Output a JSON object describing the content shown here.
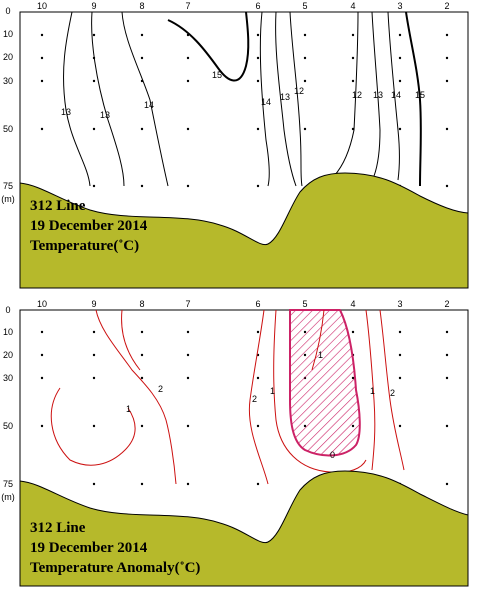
{
  "top": {
    "stations": [
      "10",
      "9",
      "8",
      "7",
      "6",
      "5",
      "4",
      "3",
      "2"
    ],
    "depths": [
      "0",
      "10",
      "20",
      "30",
      "50",
      "75"
    ],
    "depth_unit": "(m)",
    "line_name": "312 Line",
    "date": "19  December 2014",
    "variable": "Temperature(˚C)",
    "contour_labels": [
      "13",
      "13",
      "14",
      "15",
      "14",
      "13",
      "12",
      "12",
      "13",
      "14",
      "15"
    ]
  },
  "bottom": {
    "stations": [
      "10",
      "9",
      "8",
      "7",
      "6",
      "5",
      "4",
      "3",
      "2"
    ],
    "depths": [
      "0",
      "10",
      "20",
      "30",
      "50",
      "75"
    ],
    "depth_unit": "(m)",
    "line_name": "312 Line",
    "date": "19  December 2014",
    "variable": "Temperature Anomaly(˚C)",
    "contour_labels": [
      "1",
      "2",
      "2",
      "1",
      "1",
      "0",
      "1",
      "2"
    ]
  },
  "colors": {
    "seabed": "#b6b92b",
    "contour_top": "#000000",
    "contour_anomaly": "#cc1111",
    "anomaly_patch": "#cc2266"
  }
}
